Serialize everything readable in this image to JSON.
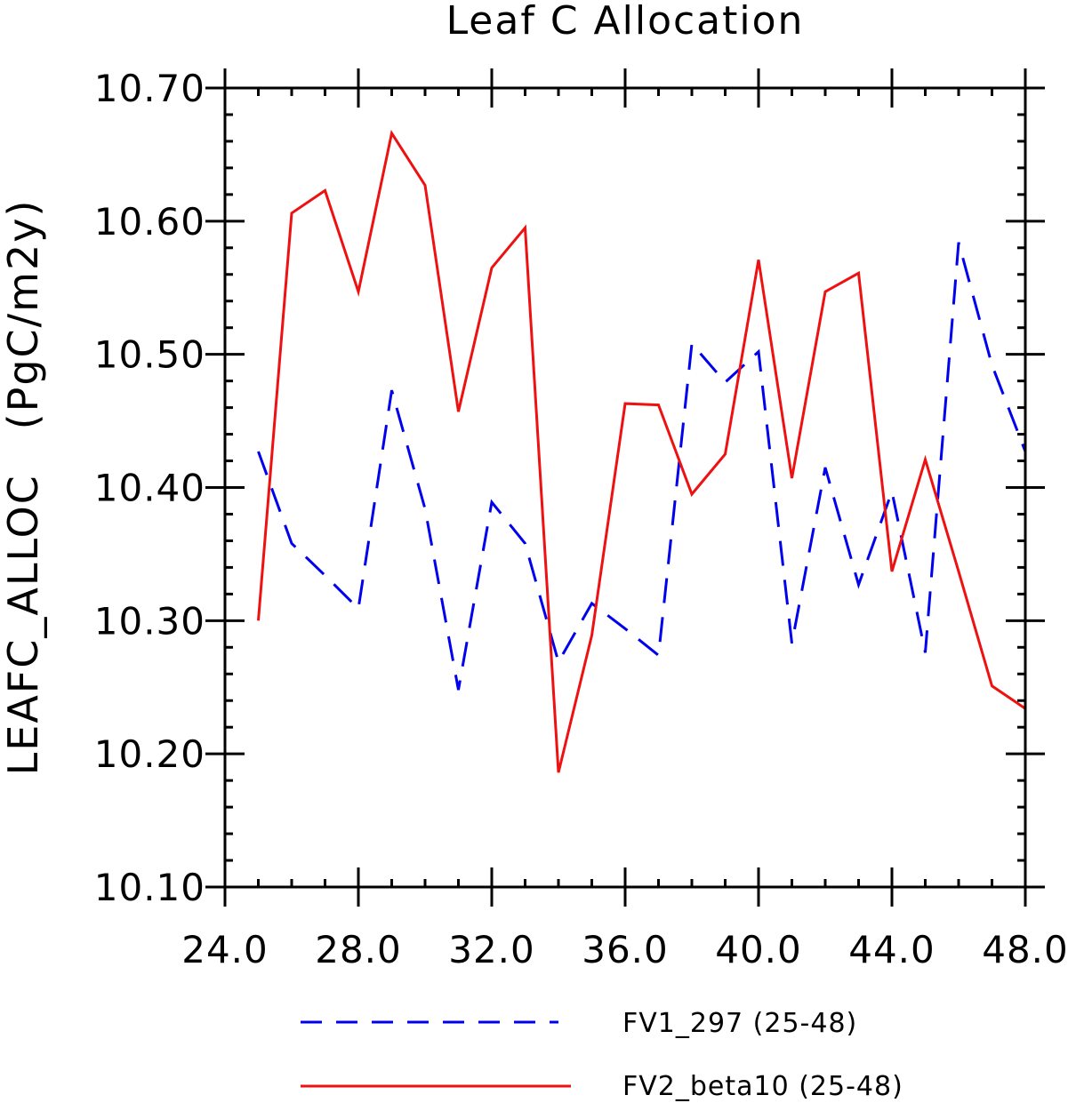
{
  "chart_data": {
    "type": "line",
    "title": "Leaf C Allocation",
    "xlabel": "",
    "ylabel": "LEAFC_ALLOC   (PgC/m2y)",
    "xlim": [
      24,
      48
    ],
    "ylim": [
      10.1,
      10.7
    ],
    "x_ticks": [
      24,
      28,
      32,
      36,
      40,
      44,
      48
    ],
    "x_tick_labels": [
      "24.0",
      "28.0",
      "32.0",
      "36.0",
      "40.0",
      "44.0",
      "48.0"
    ],
    "y_ticks": [
      10.1,
      10.2,
      10.3,
      10.4,
      10.5,
      10.6,
      10.7
    ],
    "y_tick_labels": [
      "10.10",
      "10.20",
      "10.30",
      "10.40",
      "10.50",
      "10.60",
      "10.70"
    ],
    "x": [
      25,
      26,
      27,
      28,
      29,
      30,
      31,
      32,
      33,
      34,
      35,
      36,
      37,
      38,
      39,
      40,
      41,
      42,
      43,
      44,
      45,
      46,
      47,
      48
    ],
    "series": [
      {
        "name": "FV1_297 (25-48)",
        "color": "#0000ee",
        "style": "dashed",
        "values": [
          10.427,
          10.358,
          10.334,
          10.309,
          10.473,
          10.384,
          10.248,
          10.389,
          10.358,
          10.269,
          10.313,
          10.294,
          10.274,
          10.508,
          10.479,
          10.502,
          10.283,
          10.415,
          10.327,
          10.397,
          10.276,
          10.584,
          10.492,
          10.427
        ]
      },
      {
        "name": "FV2_beta10 (25-48)",
        "color": "#ee1111",
        "style": "solid",
        "values": [
          10.3,
          10.606,
          10.623,
          10.547,
          10.666,
          10.627,
          10.457,
          10.565,
          10.595,
          10.186,
          10.289,
          10.463,
          10.462,
          10.395,
          10.425,
          10.571,
          10.407,
          10.547,
          10.561,
          10.337,
          10.421,
          10.337,
          10.251,
          10.234
        ]
      }
    ]
  }
}
